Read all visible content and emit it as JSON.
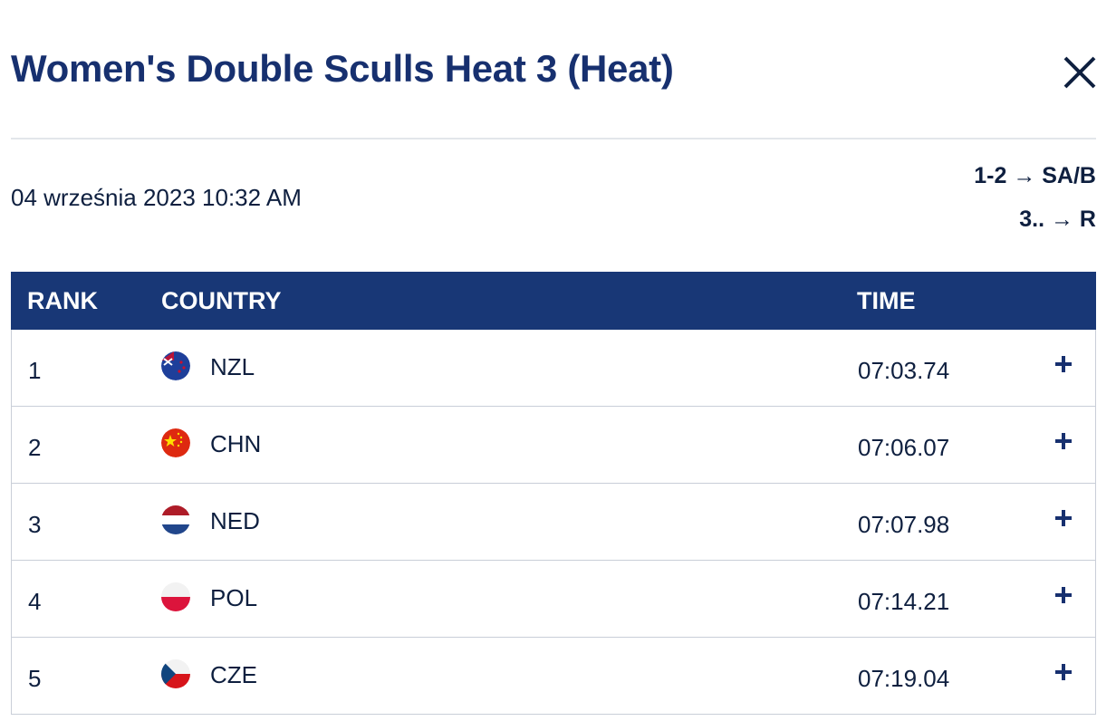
{
  "header": {
    "title": "Women's Double Sculls Heat 3 (Heat)"
  },
  "date": "04 września 2023 10:32 AM",
  "progression": [
    "1-2 → SA/B",
    "3.. → R"
  ],
  "table": {
    "columns": [
      "RANK",
      "COUNTRY",
      "TIME"
    ],
    "rows": [
      [
        1,
        "NZL",
        "07:03.74"
      ],
      [
        2,
        "CHN",
        "07:06.07"
      ],
      [
        3,
        "NED",
        "07:07.98"
      ],
      [
        4,
        "POL",
        "07:14.21"
      ],
      [
        5,
        "CZE",
        "07:19.04"
      ]
    ]
  }
}
